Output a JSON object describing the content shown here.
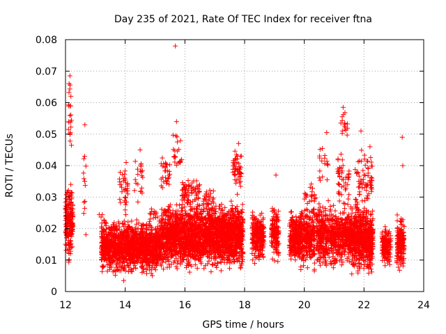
{
  "chart_data": {
    "type": "scatter",
    "title": "Day 235 of 2021, Rate Of TEC Index for receiver ftna",
    "xlabel": "GPS time / hours",
    "ylabel": "ROTI / TECUs",
    "xlim": [
      12,
      24
    ],
    "ylim": [
      0,
      0.08
    ],
    "xticks": [
      12,
      14,
      16,
      18,
      20,
      22,
      24
    ],
    "xtick_labels": [
      "12",
      "14",
      "16",
      "18",
      "20",
      "22",
      "24"
    ],
    "yticks": [
      0,
      0.01,
      0.02,
      0.03,
      0.04,
      0.05,
      0.06,
      0.07,
      0.08
    ],
    "ytick_labels": [
      "0",
      "0.01",
      "0.02",
      "0.03",
      "0.04",
      "0.05",
      "0.06",
      "0.07",
      "0.08"
    ],
    "grid": true,
    "marker": "plus",
    "color": "#ff0000",
    "clusters": [
      {
        "x": [
          12.0,
          12.25
        ],
        "y": [
          0.007,
          0.037
        ],
        "n": 180
      },
      {
        "x": [
          12.1,
          12.2
        ],
        "y": [
          0.04,
          0.069
        ],
        "n": 18
      },
      {
        "x": [
          12.6,
          12.7
        ],
        "y": [
          0.009,
          0.053
        ],
        "n": 12
      },
      {
        "x": [
          13.1,
          13.4
        ],
        "y": [
          0.015,
          0.032
        ],
        "n": 6
      },
      {
        "x": [
          13.2,
          15.2
        ],
        "y": [
          0.004,
          0.024
        ],
        "n": 1400
      },
      {
        "x": [
          13.8,
          14.1
        ],
        "y": [
          0.02,
          0.044
        ],
        "n": 40
      },
      {
        "x": [
          14.3,
          14.6
        ],
        "y": [
          0.025,
          0.045
        ],
        "n": 20
      },
      {
        "x": [
          14.8,
          15.1
        ],
        "y": [
          0.02,
          0.03
        ],
        "n": 15
      },
      {
        "x": [
          15.2,
          15.5
        ],
        "y": [
          0.03,
          0.047
        ],
        "n": 28
      },
      {
        "x": [
          15.2,
          17.2
        ],
        "y": [
          0.005,
          0.03
        ],
        "n": 1500
      },
      {
        "x": [
          15.6,
          15.9
        ],
        "y": [
          0.035,
          0.054
        ],
        "n": 20
      },
      {
        "x": [
          15.9,
          16.5
        ],
        "y": [
          0.025,
          0.038
        ],
        "n": 70
      },
      {
        "x": [
          16.6,
          17.0
        ],
        "y": [
          0.025,
          0.033
        ],
        "n": 30
      },
      {
        "x": [
          17.2,
          17.95
        ],
        "y": [
          0.005,
          0.03
        ],
        "n": 650
      },
      {
        "x": [
          17.6,
          17.9
        ],
        "y": [
          0.03,
          0.047
        ],
        "n": 55
      },
      {
        "x": [
          18.25,
          18.65
        ],
        "y": [
          0.008,
          0.027
        ],
        "n": 260
      },
      {
        "x": [
          18.9,
          19.15
        ],
        "y": [
          0.008,
          0.03
        ],
        "n": 140
      },
      {
        "x": [
          19.5,
          19.85
        ],
        "y": [
          0.008,
          0.027
        ],
        "n": 220
      },
      {
        "x": [
          19.8,
          20.35
        ],
        "y": [
          0.005,
          0.03
        ],
        "n": 300
      },
      {
        "x": [
          20.0,
          20.4
        ],
        "y": [
          0.025,
          0.037
        ],
        "n": 18
      },
      {
        "x": [
          20.4,
          21.5
        ],
        "y": [
          0.005,
          0.03
        ],
        "n": 600
      },
      {
        "x": [
          20.5,
          20.8
        ],
        "y": [
          0.03,
          0.05
        ],
        "n": 18
      },
      {
        "x": [
          21.1,
          21.5
        ],
        "y": [
          0.025,
          0.045
        ],
        "n": 45
      },
      {
        "x": [
          21.2,
          21.45
        ],
        "y": [
          0.047,
          0.059
        ],
        "n": 16
      },
      {
        "x": [
          21.5,
          22.3
        ],
        "y": [
          0.004,
          0.03
        ],
        "n": 650
      },
      {
        "x": [
          21.7,
          22.3
        ],
        "y": [
          0.025,
          0.047
        ],
        "n": 70
      },
      {
        "x": [
          22.6,
          22.9
        ],
        "y": [
          0.007,
          0.022
        ],
        "n": 150
      },
      {
        "x": [
          23.1,
          23.35
        ],
        "y": [
          0.006,
          0.025
        ],
        "n": 180
      }
    ],
    "points": [
      {
        "x": 15.68,
        "y": 0.078
      },
      {
        "x": 12.15,
        "y": 0.0685
      },
      {
        "x": 12.12,
        "y": 0.066
      },
      {
        "x": 12.18,
        "y": 0.062
      },
      {
        "x": 12.16,
        "y": 0.059
      },
      {
        "x": 21.3,
        "y": 0.0585
      },
      {
        "x": 15.72,
        "y": 0.054
      },
      {
        "x": 12.65,
        "y": 0.053
      },
      {
        "x": 12.1,
        "y": 0.0515
      },
      {
        "x": 20.75,
        "y": 0.0505
      },
      {
        "x": 21.9,
        "y": 0.051
      },
      {
        "x": 15.7,
        "y": 0.0495
      },
      {
        "x": 23.28,
        "y": 0.049
      },
      {
        "x": 17.8,
        "y": 0.047
      },
      {
        "x": 22.2,
        "y": 0.046
      },
      {
        "x": 14.5,
        "y": 0.045
      },
      {
        "x": 23.3,
        "y": 0.04
      },
      {
        "x": 19.05,
        "y": 0.037
      },
      {
        "x": 14.35,
        "y": 0.0075
      },
      {
        "x": 13.95,
        "y": 0.0035
      }
    ]
  }
}
